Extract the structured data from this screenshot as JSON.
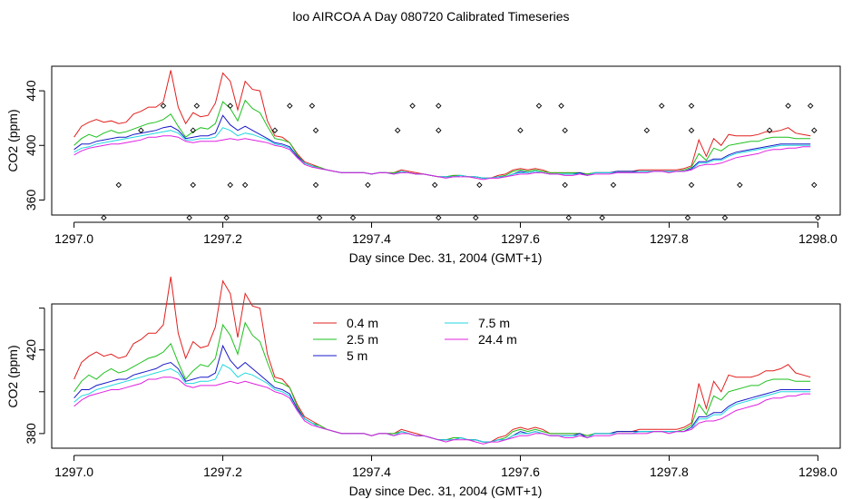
{
  "title": "loo AIRCOA A  Day 080720  Calibrated Timeseries",
  "legend": [
    {
      "label": "0.4 m",
      "color": "#e0201e"
    },
    {
      "label": "2.5 m",
      "color": "#1ec01e"
    },
    {
      "label": "5 m",
      "color": "#1818c8"
    },
    {
      "label": "7.5 m",
      "color": "#20d8e0"
    },
    {
      "label": "24.4 m",
      "color": "#e020e0"
    }
  ],
  "chart_data": [
    {
      "type": "line",
      "xlabel": "Day since Dec. 31, 2004 (GMT+1)",
      "ylabel": "CO2 (ppm)",
      "xlim": [
        1296.97,
        1298.03
      ],
      "ylim": [
        349,
        458
      ],
      "xticks": [
        "1297.0",
        "1297.2",
        "1297.4",
        "1297.6",
        "1297.8",
        "1298.0"
      ],
      "xtick_values": [
        1297.0,
        1297.2,
        1297.4,
        1297.6,
        1297.8,
        1298.0
      ],
      "yticks": [
        "360",
        "400",
        "440"
      ],
      "ytick_values": [
        360,
        400,
        440
      ],
      "grid": false,
      "scatter": [
        [
          1297.04,
          347
        ],
        [
          1297.06,
          371
        ],
        [
          1297.09,
          411
        ],
        [
          1297.12,
          429
        ],
        [
          1297.155,
          347
        ],
        [
          1297.16,
          371
        ],
        [
          1297.16,
          411
        ],
        [
          1297.165,
          429
        ],
        [
          1297.205,
          347
        ],
        [
          1297.21,
          371
        ],
        [
          1297.21,
          429
        ],
        [
          1297.23,
          371
        ],
        [
          1297.27,
          411
        ],
        [
          1297.29,
          429
        ],
        [
          1297.32,
          429
        ],
        [
          1297.325,
          371
        ],
        [
          1297.325,
          411
        ],
        [
          1297.33,
          347
        ],
        [
          1297.375,
          347
        ],
        [
          1297.395,
          371
        ],
        [
          1297.435,
          411
        ],
        [
          1297.455,
          429
        ],
        [
          1297.485,
          371
        ],
        [
          1297.49,
          347
        ],
        [
          1297.49,
          429
        ],
        [
          1297.49,
          411
        ],
        [
          1297.54,
          347
        ],
        [
          1297.545,
          371
        ],
        [
          1297.6,
          411
        ],
        [
          1297.625,
          429
        ],
        [
          1297.655,
          429
        ],
        [
          1297.66,
          411
        ],
        [
          1297.66,
          371
        ],
        [
          1297.665,
          347
        ],
        [
          1297.71,
          347
        ],
        [
          1297.725,
          371
        ],
        [
          1297.77,
          411
        ],
        [
          1297.79,
          429
        ],
        [
          1297.825,
          347
        ],
        [
          1297.83,
          371
        ],
        [
          1297.83,
          411
        ],
        [
          1297.83,
          429
        ],
        [
          1297.875,
          347
        ],
        [
          1297.895,
          371
        ],
        [
          1297.935,
          411
        ],
        [
          1297.96,
          429
        ],
        [
          1297.99,
          429
        ],
        [
          1297.995,
          411
        ],
        [
          1297.995,
          371
        ],
        [
          1298.0,
          347
        ]
      ],
      "x": [
        1297.0,
        1297.01,
        1297.02,
        1297.03,
        1297.04,
        1297.05,
        1297.06,
        1297.07,
        1297.08,
        1297.09,
        1297.1,
        1297.11,
        1297.12,
        1297.13,
        1297.14,
        1297.15,
        1297.16,
        1297.17,
        1297.18,
        1297.19,
        1297.2,
        1297.21,
        1297.22,
        1297.23,
        1297.24,
        1297.25,
        1297.26,
        1297.27,
        1297.28,
        1297.29,
        1297.3,
        1297.31,
        1297.32,
        1297.33,
        1297.34,
        1297.35,
        1297.36,
        1297.37,
        1297.38,
        1297.39,
        1297.4,
        1297.41,
        1297.42,
        1297.43,
        1297.44,
        1297.45,
        1297.46,
        1297.47,
        1297.48,
        1297.49,
        1297.5,
        1297.51,
        1297.52,
        1297.53,
        1297.54,
        1297.55,
        1297.56,
        1297.57,
        1297.58,
        1297.59,
        1297.6,
        1297.61,
        1297.62,
        1297.63,
        1297.64,
        1297.65,
        1297.66,
        1297.67,
        1297.68,
        1297.69,
        1297.7,
        1297.71,
        1297.72,
        1297.73,
        1297.74,
        1297.75,
        1297.76,
        1297.77,
        1297.78,
        1297.79,
        1297.8,
        1297.81,
        1297.82,
        1297.83,
        1297.84,
        1297.85,
        1297.86,
        1297.87,
        1297.88,
        1297.89,
        1297.9,
        1297.91,
        1297.92,
        1297.93,
        1297.94,
        1297.95,
        1297.96,
        1297.97,
        1297.98,
        1297.99
      ],
      "series": [
        {
          "name": "0.4 m",
          "color": "#e0201e",
          "values": [
            406,
            414,
            417,
            419,
            417,
            418,
            416,
            417,
            423,
            425,
            428,
            428,
            432,
            455,
            428,
            416,
            424,
            421,
            422,
            431,
            453,
            447,
            426,
            447,
            441,
            440,
            418,
            407,
            406,
            402,
            394,
            388,
            386,
            384,
            382,
            381,
            380,
            380,
            380,
            380,
            379,
            380,
            380,
            380,
            382,
            381,
            380,
            379,
            378,
            377,
            377,
            378,
            378,
            377,
            377,
            376,
            376,
            378,
            379,
            382,
            383,
            382,
            383,
            382,
            380,
            380,
            380,
            380,
            380,
            379,
            380,
            380,
            380,
            381,
            381,
            381,
            382,
            382,
            382,
            382,
            382,
            382,
            383,
            385,
            404,
            392,
            405,
            400,
            408,
            407,
            407,
            407,
            408,
            410,
            410,
            411,
            413,
            409,
            408,
            407
          ]
        },
        {
          "name": "2.5 m",
          "color": "#1ec01e",
          "values": [
            400,
            405,
            408,
            406,
            409,
            411,
            409,
            410,
            412,
            414,
            416,
            417,
            419,
            423,
            414,
            406,
            410,
            413,
            412,
            416,
            432,
            427,
            418,
            433,
            427,
            424,
            414,
            405,
            404,
            402,
            393,
            387,
            385,
            384,
            382,
            381,
            380,
            380,
            380,
            380,
            379,
            380,
            380,
            380,
            381,
            380,
            379,
            379,
            378,
            377,
            377,
            378,
            378,
            377,
            377,
            376,
            376,
            377,
            378,
            381,
            382,
            381,
            382,
            381,
            380,
            380,
            380,
            380,
            380,
            379,
            380,
            380,
            380,
            381,
            381,
            381,
            381,
            381,
            381,
            381,
            381,
            381,
            382,
            384,
            394,
            389,
            398,
            396,
            400,
            401,
            402,
            403,
            403,
            405,
            406,
            406,
            406,
            405,
            405,
            405
          ]
        },
        {
          "name": "5 m",
          "color": "#1818c8",
          "values": [
            397,
            401,
            401,
            403,
            404,
            405,
            406,
            406,
            408,
            409,
            410,
            411,
            413,
            414,
            411,
            405,
            406,
            407,
            407,
            409,
            422,
            415,
            411,
            414,
            411,
            408,
            405,
            402,
            401,
            399,
            392,
            387,
            385,
            383,
            382,
            381,
            380,
            380,
            380,
            380,
            379,
            380,
            380,
            379,
            381,
            380,
            379,
            379,
            378,
            377,
            377,
            377,
            378,
            377,
            377,
            376,
            376,
            377,
            377,
            379,
            381,
            380,
            381,
            380,
            379,
            379,
            379,
            379,
            380,
            378,
            380,
            380,
            380,
            381,
            381,
            381,
            381,
            381,
            381,
            381,
            381,
            381,
            381,
            383,
            388,
            388,
            390,
            390,
            393,
            395,
            396,
            397,
            398,
            399,
            400,
            401,
            401,
            401,
            401,
            401
          ]
        },
        {
          "name": "7.5 m",
          "color": "#20d8e0",
          "values": [
            395,
            398,
            399,
            401,
            402,
            403,
            404,
            405,
            406,
            407,
            408,
            409,
            410,
            411,
            409,
            404,
            404,
            405,
            405,
            406,
            413,
            411,
            407,
            409,
            408,
            406,
            404,
            401,
            400,
            398,
            391,
            387,
            385,
            383,
            382,
            381,
            380,
            380,
            380,
            380,
            379,
            380,
            380,
            379,
            381,
            380,
            379,
            379,
            378,
            377,
            377,
            377,
            378,
            377,
            377,
            376,
            376,
            377,
            377,
            379,
            380,
            380,
            381,
            380,
            379,
            379,
            379,
            379,
            379,
            378,
            380,
            380,
            380,
            380,
            380,
            380,
            381,
            381,
            381,
            381,
            381,
            381,
            381,
            382,
            387,
            387,
            389,
            389,
            392,
            394,
            395,
            396,
            397,
            398,
            399,
            400,
            400,
            400,
            400,
            400
          ]
        },
        {
          "name": "24.4 m",
          "color": "#e020e0",
          "values": [
            393,
            396,
            398,
            399,
            400,
            401,
            401,
            402,
            403,
            404,
            406,
            406,
            407,
            407,
            406,
            403,
            402,
            403,
            403,
            403,
            404,
            405,
            404,
            405,
            404,
            403,
            402,
            400,
            399,
            397,
            391,
            386,
            384,
            383,
            382,
            381,
            380,
            380,
            380,
            380,
            379,
            380,
            380,
            379,
            380,
            380,
            379,
            379,
            378,
            377,
            376,
            377,
            377,
            377,
            376,
            375,
            376,
            376,
            377,
            378,
            379,
            379,
            380,
            380,
            379,
            379,
            378,
            378,
            379,
            378,
            379,
            379,
            379,
            380,
            380,
            380,
            380,
            380,
            381,
            381,
            380,
            381,
            381,
            382,
            385,
            386,
            386,
            387,
            389,
            391,
            392,
            393,
            394,
            396,
            397,
            397,
            398,
            398,
            399,
            399
          ]
        }
      ]
    },
    {
      "type": "line",
      "xlabel": "Day since Dec. 31, 2004 (GMT+1)",
      "ylabel": "CO2 (ppm)",
      "xlim": [
        1296.97,
        1298.03
      ],
      "ylim": [
        373,
        442
      ],
      "xticks": [
        "1297.0",
        "1297.2",
        "1297.4",
        "1297.6",
        "1297.8",
        "1298.0"
      ],
      "xtick_values": [
        1297.0,
        1297.2,
        1297.4,
        1297.6,
        1297.8,
        1298.0
      ],
      "yticks": [
        "380",
        "400",
        "420",
        "440"
      ],
      "ytick_values": [
        380,
        400,
        420,
        440
      ],
      "ytick_shown": [
        "380",
        "",
        "420",
        ""
      ],
      "grid": false,
      "legend_position": "top-center",
      "series_ref": "same as first chart"
    }
  ]
}
